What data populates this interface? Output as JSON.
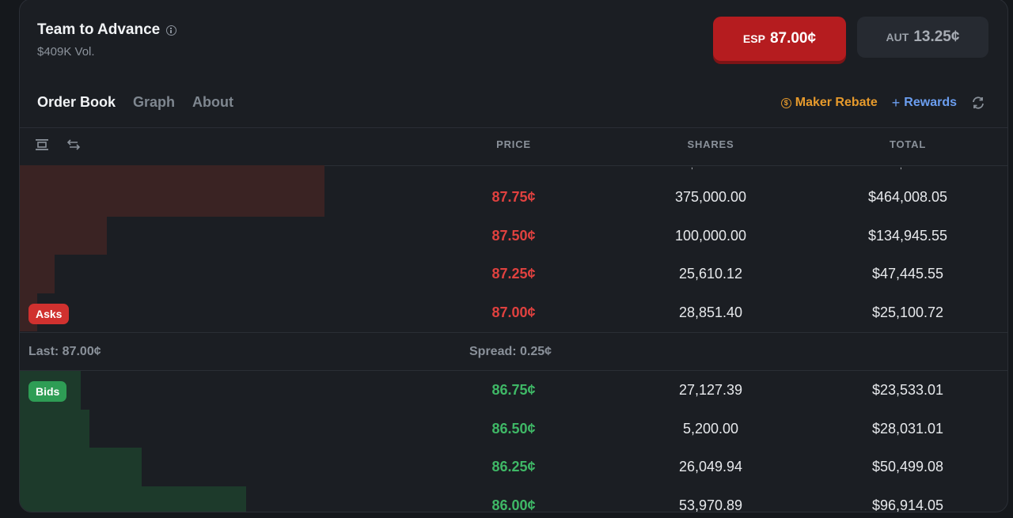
{
  "market": {
    "title": "Team to Advance",
    "volume": "$409K Vol."
  },
  "outcomes": [
    {
      "team": "ESP",
      "price": "87.00¢",
      "selected": true
    },
    {
      "team": "AUT",
      "price": "13.25¢",
      "selected": false
    }
  ],
  "tabs": [
    {
      "label": "Order Book",
      "active": true
    },
    {
      "label": "Graph",
      "active": false
    },
    {
      "label": "About",
      "active": false
    }
  ],
  "tools": {
    "maker_rebate": "Maker Rebate",
    "rewards": "Rewards"
  },
  "columns": {
    "price": "PRICE",
    "shares": "SHARES",
    "total": "TOTAL"
  },
  "asks_label": "Asks",
  "bids_label": "Bids",
  "asks": [
    {
      "price": "87.75¢",
      "shares": "375,000.00",
      "total": "$464,008.05",
      "depth": 0.35
    },
    {
      "price": "87.50¢",
      "shares": "100,000.00",
      "total": "$134,945.55",
      "depth": 0.1
    },
    {
      "price": "87.25¢",
      "shares": "25,610.12",
      "total": "$47,445.55",
      "depth": 0.04
    },
    {
      "price": "87.00¢",
      "shares": "28,851.40",
      "total": "$25,100.72",
      "depth": 0.02
    }
  ],
  "summary": {
    "last": "Last: 87.00¢",
    "spread": "Spread: 0.25¢"
  },
  "bids": [
    {
      "price": "86.75¢",
      "shares": "27,127.39",
      "total": "$23,533.01",
      "depth": 0.07
    },
    {
      "price": "86.50¢",
      "shares": "5,200.00",
      "total": "$28,031.01",
      "depth": 0.08
    },
    {
      "price": "86.25¢",
      "shares": "26,049.94",
      "total": "$50,499.08",
      "depth": 0.14
    },
    {
      "price": "86.00¢",
      "shares": "53,970.89",
      "total": "$96,914.05",
      "depth": 0.26
    }
  ],
  "colors": {
    "ask": "#e0413f",
    "bid": "#3fb866",
    "accent_orange": "#e69a2c",
    "accent_blue": "#6b9ef0"
  }
}
